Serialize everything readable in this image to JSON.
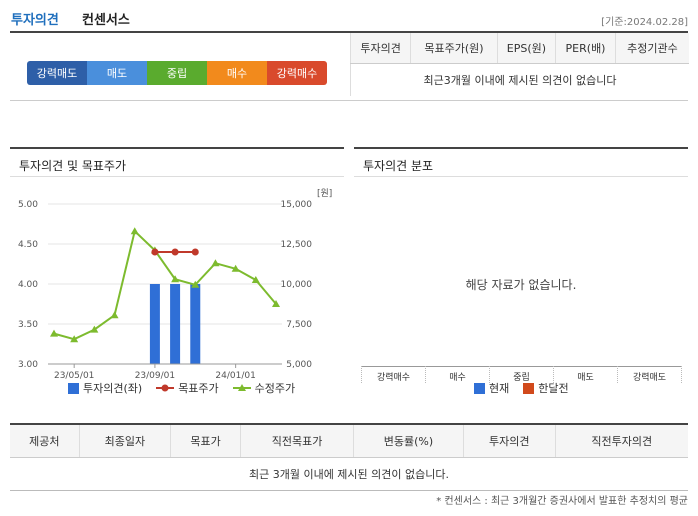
{
  "header": {
    "title": "투자의견",
    "subtitle": "컨센서스",
    "date": "[기준:2024.02.28]"
  },
  "scale": [
    {
      "label": "강력매도",
      "color": "#2e5fa8"
    },
    {
      "label": "매도",
      "color": "#4a8fdc"
    },
    {
      "label": "중립",
      "color": "#5aab2e"
    },
    {
      "label": "매수",
      "color": "#f28a1c"
    },
    {
      "label": "강력매수",
      "color": "#d94a2c"
    }
  ],
  "summary_table": {
    "headers": [
      "투자의견",
      "목표주가(원)",
      "EPS(원)",
      "PER(배)",
      "추정기관수"
    ],
    "empty_message": "최근3개월 이내에 제시된 의견이 없습니다"
  },
  "left_panel": {
    "title": "투자의견 및 목표주가"
  },
  "right_panel": {
    "title": "투자의견 분포",
    "empty_message": "해당 자료가 없습니다.",
    "categories": [
      "강력매수",
      "매수",
      "중립",
      "매도",
      "강력매도"
    ],
    "legend": [
      "현재",
      "한달전"
    ]
  },
  "chart_data": {
    "type": "bar",
    "title": "",
    "x_ticks": [
      "23/05/01",
      "23/09/01",
      "24/01/01"
    ],
    "y_left": {
      "range": [
        3.0,
        5.0
      ],
      "ticks": [
        "5.00",
        "4.50",
        "4.00",
        "3.50",
        "3.00"
      ]
    },
    "y_right": {
      "range": [
        5000,
        15000
      ],
      "unit": "[원]",
      "ticks": [
        "15,000",
        "12,500",
        "10,000",
        "7,500",
        "5,000"
      ]
    },
    "series": [
      {
        "name": "투자의견(좌)",
        "type": "bar",
        "color": "#2f6fd6",
        "points": [
          {
            "i": 5,
            "y": 4.0
          },
          {
            "i": 6,
            "y": 4.0
          },
          {
            "i": 7,
            "y": 4.0
          }
        ]
      },
      {
        "name": "목표주가",
        "type": "line",
        "color": "#c0392b",
        "points": [
          {
            "i": 5,
            "y": 12000
          },
          {
            "i": 6,
            "y": 12000
          },
          {
            "i": 7,
            "y": 12000
          }
        ]
      },
      {
        "name": "수정주가",
        "type": "line",
        "color": "#7dbb2e",
        "points": [
          {
            "i": 0,
            "y": 6900
          },
          {
            "i": 1,
            "y": 6550
          },
          {
            "i": 2,
            "y": 7150
          },
          {
            "i": 3,
            "y": 8050
          },
          {
            "i": 4,
            "y": 13300
          },
          {
            "i": 5,
            "y": 12100
          },
          {
            "i": 6,
            "y": 10300
          },
          {
            "i": 7,
            "y": 9950
          },
          {
            "i": 8,
            "y": 11300
          },
          {
            "i": 9,
            "y": 10950
          },
          {
            "i": 10,
            "y": 10250
          },
          {
            "i": 11,
            "y": 8750
          }
        ]
      }
    ]
  },
  "bottom_table": {
    "headers": [
      "제공처",
      "최종일자",
      "목표가",
      "직전목표가",
      "변동률(%)",
      "투자의견",
      "직전투자의견"
    ],
    "empty_message": "최근 3개월 이내에 제시된 의견이 없습니다."
  },
  "footnote": "* 컨센서스 : 최근 3개월간 증권사에서 발표한 추정치의 평균"
}
